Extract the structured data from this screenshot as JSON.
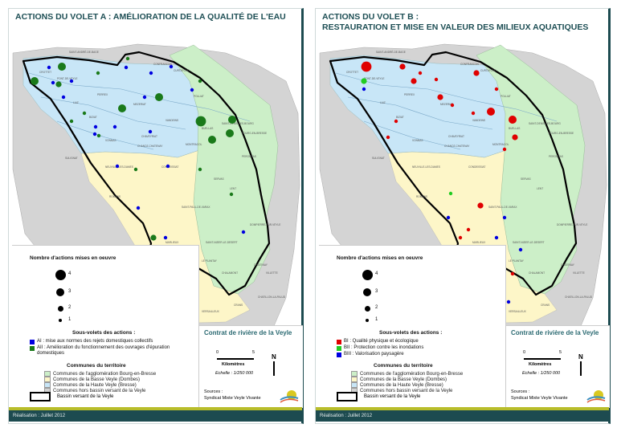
{
  "colors": {
    "agglomeration": "#ccefc8",
    "basse_veyle": "#fdf6c8",
    "haute_veyle": "#c8e6f7",
    "hors_bassin": "#d4d4d4",
    "AI": "#0000e0",
    "AII": "#1a7a1a",
    "BI": "#e00000",
    "BII": "#22cc22",
    "BIII": "#0000e0",
    "footer": "#1d4b50",
    "band": "#b8bd2a"
  },
  "panels": [
    {
      "title_lines": [
        "ACTIONS DU VOLET A : AMÉLIORATION DE LA QUALITÉ DE L'EAU"
      ],
      "count_legend_title": "Nombre d'actions mises en oeuvre",
      "count_sizes": [
        "4",
        "3",
        "2",
        "1"
      ],
      "categories_title": "Sous-volets des actions :",
      "categories": [
        {
          "code": "AI",
          "label": "AI : mise aux normes des rejets domestiques collectifs"
        },
        {
          "code": "AII",
          "label": "AII : Amélioration du fonctionnement des ouvrages d'épuration domestiques"
        }
      ],
      "markers": [
        {
          "cat": "AI",
          "n": 1
        },
        {
          "cat": "AI",
          "n": 1
        },
        {
          "cat": "AI",
          "n": 1
        },
        {
          "cat": "AI",
          "n": 1
        },
        {
          "cat": "AI",
          "n": 1
        },
        {
          "cat": "AI",
          "n": 1
        },
        {
          "cat": "AI",
          "n": 1
        },
        {
          "cat": "AI",
          "n": 1
        },
        {
          "cat": "AI",
          "n": 1
        },
        {
          "cat": "AI",
          "n": 1
        },
        {
          "cat": "AI",
          "n": 1
        },
        {
          "cat": "AI",
          "n": 1
        },
        {
          "cat": "AI",
          "n": 1
        },
        {
          "cat": "AI",
          "n": 1
        },
        {
          "cat": "AI",
          "n": 1
        },
        {
          "cat": "AI",
          "n": 1
        },
        {
          "cat": "AI",
          "n": 1
        },
        {
          "cat": "AI",
          "n": 1
        },
        {
          "cat": "AII",
          "n": 1
        },
        {
          "cat": "AII",
          "n": 1
        },
        {
          "cat": "AII",
          "n": 1
        },
        {
          "cat": "AII",
          "n": 1
        },
        {
          "cat": "AII",
          "n": 1
        },
        {
          "cat": "AII",
          "n": 1
        },
        {
          "cat": "AII",
          "n": 1
        },
        {
          "cat": "AII",
          "n": 1
        },
        {
          "cat": "AII",
          "n": 1
        },
        {
          "cat": "AII",
          "n": 3
        },
        {
          "cat": "AII",
          "n": 3
        },
        {
          "cat": "AII",
          "n": 2
        },
        {
          "cat": "AII",
          "n": 3
        },
        {
          "cat": "AII",
          "n": 3
        },
        {
          "cat": "AII",
          "n": 3
        },
        {
          "cat": "AII",
          "n": 4
        },
        {
          "cat": "AII",
          "n": 3
        },
        {
          "cat": "AII",
          "n": 2
        },
        {
          "cat": "AII",
          "n": 3
        }
      ]
    },
    {
      "title_lines": [
        "ACTIONS DU VOLET B :",
        "RESTAURATION ET MISE EN VALEUR DES MILIEUX AQUATIQUES"
      ],
      "count_legend_title": "Nombre d'actions mises en oeuvre",
      "count_sizes": [
        "4",
        "3",
        "2",
        "1"
      ],
      "categories_title": "Sous-volets des actions :",
      "categories": [
        {
          "code": "BI",
          "label": "BI : Qualité physique et écologique"
        },
        {
          "code": "BII",
          "label": "BII : Protection contre les inondations"
        },
        {
          "code": "BIII",
          "label": "BIII : Valorisation paysagère"
        }
      ],
      "markers": [
        {
          "cat": "BI",
          "n": 4
        },
        {
          "cat": "BI",
          "n": 2
        },
        {
          "cat": "BI",
          "n": 2
        },
        {
          "cat": "BI",
          "n": 1
        },
        {
          "cat": "BI",
          "n": 1
        },
        {
          "cat": "BI",
          "n": 2
        },
        {
          "cat": "BI",
          "n": 1
        },
        {
          "cat": "BI",
          "n": 1
        },
        {
          "cat": "BI",
          "n": 2
        },
        {
          "cat": "BI",
          "n": 1
        },
        {
          "cat": "BI",
          "n": 3
        },
        {
          "cat": "BI",
          "n": 3
        },
        {
          "cat": "BI",
          "n": 2
        },
        {
          "cat": "BI",
          "n": 1
        },
        {
          "cat": "BI",
          "n": 1
        },
        {
          "cat": "BI",
          "n": 1
        },
        {
          "cat": "BI",
          "n": 2
        },
        {
          "cat": "BI",
          "n": 1
        },
        {
          "cat": "BI",
          "n": 1
        },
        {
          "cat": "BI",
          "n": 1
        },
        {
          "cat": "BII",
          "n": 2
        },
        {
          "cat": "BII",
          "n": 1
        },
        {
          "cat": "BIII",
          "n": 1
        },
        {
          "cat": "BIII",
          "n": 1
        },
        {
          "cat": "BIII",
          "n": 1
        },
        {
          "cat": "BIII",
          "n": 1
        },
        {
          "cat": "BIII",
          "n": 1
        },
        {
          "cat": "BIII",
          "n": 1
        }
      ]
    }
  ],
  "communes_title": "Communes du territoire",
  "communes": [
    {
      "key": "agglomeration",
      "label": "Communes de l'agglomération Bourg-en-Bresse"
    },
    {
      "key": "basse_veyle",
      "label": "Communes de la Basse Veyle (Dombes)"
    },
    {
      "key": "haute_veyle",
      "label": "Communes de la Haute Veyle (Bresse)"
    },
    {
      "key": "hors_bassin",
      "label": "Communes hors bassin versant de la Veyle"
    }
  ],
  "basin_label": "Bassin versant de la Veyle",
  "contract_title": "Contrat de rivière de la Veyle",
  "scale": {
    "start": "0",
    "end": "5",
    "unit": "Kilomètres",
    "ratio": "Echelle : 1/250 000"
  },
  "north": "N",
  "sources_label": "Sources :",
  "sources_value": "Syndicat Mixte Veyle Vivante",
  "footer": "Réalisation : Juillet 2012",
  "towns": [
    "SAINT-ANDRÉ-DE-BAGE",
    "PONT-DE-VEYLE",
    "CROTTET",
    "LAIZ",
    "PERREX",
    "MEZERIAT",
    "CONFRANCON",
    "CURTAFOND",
    "POLLIAT",
    "VANDEINS",
    "BUELLAS",
    "MONTRACOL",
    "SAINT-DENIS-LES-BOURG",
    "BOURG-EN-BRESSE",
    "PERONNAS",
    "CHAVEYRIAT",
    "CHANOZ-CHATENAY",
    "VONNAS",
    "BIZIAT",
    "NEUVILLE-LES-DAMES",
    "CONDEISSIAT",
    "SULIGNAT",
    "ROMANS",
    "SAINT-PAUL-DE-VARAX",
    "LENT",
    "SERVAS",
    "MARLIEUX",
    "LE PLANTAY",
    "CHALAMONT",
    "CHATENAY",
    "VILLETTE",
    "VERSAILLEUX",
    "CRANS",
    "DOMPIERRE-SUR-VEYLE",
    "SAINT-NIZIER-LE-DESERT",
    "CHATILLON-LA-PALUD"
  ]
}
